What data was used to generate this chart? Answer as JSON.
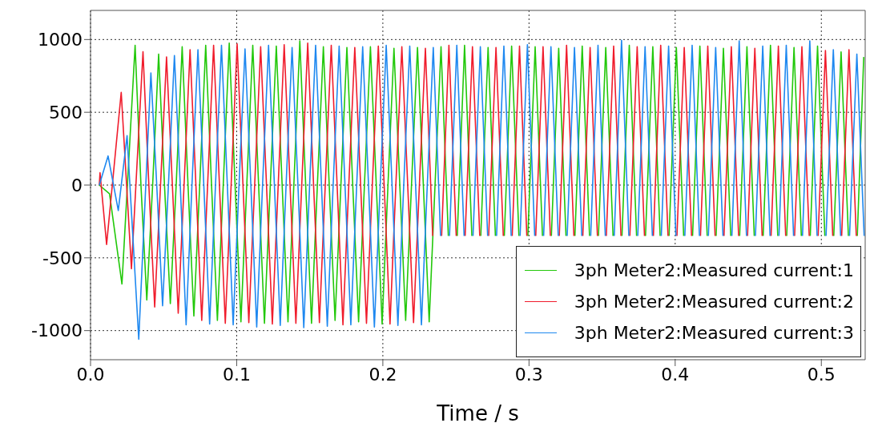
{
  "chart_data": {
    "type": "line",
    "xlabel": "Time / s",
    "xlim": [
      0,
      0.53
    ],
    "xticks": [
      {
        "value": 0,
        "label": "0.0"
      },
      0.1,
      0.2,
      0.3,
      0.4,
      0.5
    ],
    "ylim": [
      -1200,
      1200
    ],
    "yticks": [
      -1000,
      -500,
      0,
      500,
      1000
    ],
    "grid": true,
    "legend": "bottom right",
    "series": [
      {
        "name": "3ph Meter2:Measured current:1",
        "color": "#22c80a",
        "x": [
          0.006,
          0.013,
          0.0215,
          0.0305,
          0.0345,
          0.0385,
          0.0425,
          0.0466,
          0.0506,
          0.0546,
          0.0586,
          0.0627,
          0.0667,
          0.0707,
          0.0747,
          0.0788,
          0.0828,
          0.0868,
          0.0908,
          0.0949,
          0.0989,
          0.1029,
          0.1069,
          0.111,
          0.115,
          0.119,
          0.123,
          0.1271,
          0.1311,
          0.1351,
          0.1391,
          0.1432,
          0.1472,
          0.1512,
          0.1552,
          0.1593,
          0.1633,
          0.1673,
          0.1713,
          0.1754,
          0.1794,
          0.1834,
          0.1874,
          0.1915,
          0.1955,
          0.1995,
          0.2035,
          0.2076,
          0.2116,
          0.2156,
          0.2196,
          0.2237,
          0.2277,
          0.2317,
          0.2357,
          0.2398,
          0.2448,
          0.2478,
          0.2509,
          0.2559,
          0.2609,
          0.2639,
          0.267,
          0.272,
          0.277,
          0.28,
          0.2831,
          0.2881,
          0.2931,
          0.2961,
          0.2992,
          0.3042,
          0.3092,
          0.3122,
          0.3153,
          0.3203,
          0.3253,
          0.3283,
          0.3314,
          0.3364,
          0.3414,
          0.3444,
          0.3475,
          0.3525,
          0.3575,
          0.3605,
          0.3636,
          0.3686,
          0.3736,
          0.3766,
          0.3797,
          0.3847,
          0.3897,
          0.3927,
          0.3958,
          0.4008,
          0.4058,
          0.4088,
          0.4119,
          0.4169,
          0.4219,
          0.4249,
          0.428,
          0.433,
          0.438,
          0.441,
          0.4441,
          0.4491,
          0.4541,
          0.4571,
          0.4602,
          0.4652,
          0.4702,
          0.4732,
          0.4763,
          0.4813,
          0.4863,
          0.4893,
          0.4924,
          0.4974,
          0.5024,
          0.5054,
          0.5085,
          0.5135,
          0.5185,
          0.5215,
          0.5246,
          0.529
        ],
        "values": [
          0,
          -60,
          -680,
          960,
          0,
          -790,
          0,
          900,
          0,
          -815,
          0,
          950,
          0,
          -900,
          0,
          960,
          0,
          -930,
          0,
          975,
          0,
          -940,
          0,
          960,
          0,
          -950,
          0,
          955,
          0,
          -940,
          0,
          990,
          0,
          -950,
          0,
          950,
          0,
          -930,
          0,
          945,
          0,
          -940,
          0,
          950,
          0,
          -955,
          0,
          940,
          0,
          -930,
          0,
          945,
          0,
          -940,
          0,
          950,
          -350,
          null,
          -350,
          960,
          -350,
          null,
          -350,
          945,
          -350,
          null,
          -350,
          955,
          -350,
          null,
          -350,
          950,
          -350,
          null,
          -350,
          940,
          -350,
          null,
          -350,
          955,
          -350,
          null,
          -350,
          945,
          -350,
          null,
          -350,
          960,
          -350,
          null,
          -350,
          950,
          -350,
          null,
          -350,
          945,
          -350,
          null,
          -350,
          955,
          -350,
          null,
          -350,
          940,
          -350,
          null,
          -350,
          950,
          -350,
          null,
          -350,
          960,
          -350,
          null,
          -350,
          945,
          -350,
          null,
          -350,
          955,
          -350,
          null,
          -350,
          915,
          -350,
          null,
          -350,
          880
        ]
      },
      {
        "name": "3ph Meter2:Measured current:2",
        "color": "#f01c2c",
        "x": [
          0.006,
          0.0065,
          0.011,
          0.021,
          0.028,
          0.0359,
          0.0399,
          0.0439,
          0.0479,
          0.052,
          0.056,
          0.06,
          0.064,
          0.0681,
          0.0721,
          0.0761,
          0.0801,
          0.0842,
          0.0882,
          0.0922,
          0.0962,
          0.1003,
          0.1043,
          0.1083,
          0.1123,
          0.1164,
          0.1204,
          0.1244,
          0.1284,
          0.1325,
          0.1365,
          0.1405,
          0.1445,
          0.1486,
          0.1526,
          0.1566,
          0.1606,
          0.1647,
          0.1687,
          0.1727,
          0.1767,
          0.1808,
          0.1848,
          0.1888,
          0.1928,
          0.1969,
          0.2009,
          0.2049,
          0.2089,
          0.213,
          0.217,
          0.221,
          0.225,
          0.2291,
          0.2341,
          0.2371,
          0.2402,
          0.2452,
          0.2502,
          0.2532,
          0.2563,
          0.2613,
          0.2663,
          0.2693,
          0.2724,
          0.2774,
          0.2824,
          0.2854,
          0.2885,
          0.2935,
          0.2985,
          0.3015,
          0.3046,
          0.3096,
          0.3146,
          0.3176,
          0.3207,
          0.3257,
          0.3307,
          0.3337,
          0.3368,
          0.3418,
          0.3468,
          0.3498,
          0.3529,
          0.3579,
          0.3629,
          0.3659,
          0.369,
          0.374,
          0.379,
          0.382,
          0.3851,
          0.3901,
          0.3951,
          0.3981,
          0.4012,
          0.4062,
          0.4112,
          0.4142,
          0.4173,
          0.4223,
          0.4273,
          0.4303,
          0.4334,
          0.4384,
          0.4434,
          0.4464,
          0.4495,
          0.4545,
          0.4595,
          0.4625,
          0.4656,
          0.4706,
          0.4756,
          0.4786,
          0.4817,
          0.4867,
          0.4917,
          0.4947,
          0.4978,
          0.5028,
          0.5078,
          0.5108,
          0.5139,
          0.5189,
          0.5239
        ],
        "values": [
          0,
          85,
          -408,
          637,
          -575,
          916,
          0,
          -838,
          0,
          880,
          0,
          -880,
          0,
          930,
          0,
          -930,
          0,
          960,
          0,
          -950,
          0,
          970,
          0,
          -945,
          0,
          950,
          0,
          -955,
          0,
          965,
          0,
          -950,
          0,
          975,
          0,
          -945,
          0,
          960,
          0,
          -960,
          0,
          945,
          0,
          -950,
          0,
          955,
          0,
          -955,
          0,
          950,
          0,
          -945,
          0,
          940,
          -350,
          null,
          -350,
          960,
          -350,
          null,
          -350,
          950,
          -350,
          null,
          -350,
          945,
          -350,
          null,
          -350,
          955,
          -350,
          null,
          -350,
          950,
          -350,
          null,
          -350,
          960,
          -350,
          null,
          -350,
          945,
          -350,
          null,
          -350,
          955,
          -350,
          null,
          -350,
          950,
          -350,
          null,
          -350,
          960,
          -350,
          null,
          -350,
          945,
          -350,
          null,
          -350,
          955,
          -350,
          null,
          -350,
          950,
          -350,
          null,
          -350,
          940,
          -350,
          null,
          -350,
          955,
          -350,
          null,
          -350,
          950,
          -350,
          null,
          -350,
          925,
          -350,
          null,
          -350,
          930,
          -350
        ]
      },
      {
        "name": "3ph Meter2:Measured current:3",
        "color": "#1e88f0",
        "x": [
          0.006,
          0.012,
          0.019,
          0.025,
          0.033,
          0.0413,
          0.0453,
          0.0493,
          0.0533,
          0.0574,
          0.0614,
          0.0654,
          0.0694,
          0.0735,
          0.0775,
          0.0815,
          0.0855,
          0.0896,
          0.0936,
          0.0976,
          0.1016,
          0.1057,
          0.1097,
          0.1137,
          0.1177,
          0.1218,
          0.1258,
          0.1298,
          0.1338,
          0.1379,
          0.1419,
          0.1459,
          0.1499,
          0.154,
          0.158,
          0.162,
          0.166,
          0.1701,
          0.1741,
          0.1781,
          0.1821,
          0.1862,
          0.1902,
          0.1942,
          0.1982,
          0.2023,
          0.2063,
          0.2103,
          0.2143,
          0.2184,
          0.2224,
          0.2264,
          0.2304,
          0.2345,
          0.2395,
          0.2425,
          0.2456,
          0.2506,
          0.2556,
          0.2586,
          0.2617,
          0.2667,
          0.2717,
          0.2747,
          0.2778,
          0.2828,
          0.2878,
          0.2908,
          0.2939,
          0.2989,
          0.3039,
          0.3069,
          0.31,
          0.315,
          0.32,
          0.323,
          0.3261,
          0.3311,
          0.3361,
          0.3391,
          0.3422,
          0.3472,
          0.3522,
          0.3552,
          0.3583,
          0.3633,
          0.3683,
          0.3713,
          0.3744,
          0.3794,
          0.3844,
          0.3874,
          0.3905,
          0.3955,
          0.4005,
          0.4035,
          0.4066,
          0.4116,
          0.4166,
          0.4196,
          0.4227,
          0.4277,
          0.4327,
          0.4357,
          0.4388,
          0.4438,
          0.4488,
          0.4518,
          0.4549,
          0.4599,
          0.4649,
          0.4679,
          0.471,
          0.476,
          0.481,
          0.484,
          0.4871,
          0.4921,
          0.4971,
          0.5001,
          0.5032,
          0.5082,
          0.5132,
          0.5162,
          0.5193,
          0.5243,
          0.5293
        ],
        "values": [
          0,
          200,
          -175,
          340,
          -1060,
          770,
          0,
          -830,
          0,
          890,
          0,
          -960,
          0,
          930,
          0,
          -955,
          0,
          960,
          0,
          -960,
          0,
          935,
          0,
          -975,
          0,
          960,
          0,
          -965,
          0,
          945,
          0,
          -980,
          0,
          960,
          0,
          -970,
          0,
          955,
          0,
          -960,
          0,
          950,
          0,
          -975,
          0,
          960,
          0,
          -965,
          0,
          955,
          0,
          -960,
          0,
          945,
          -350,
          null,
          -350,
          960,
          -350,
          null,
          -350,
          950,
          -350,
          null,
          -350,
          955,
          -350,
          null,
          -350,
          965,
          -350,
          null,
          -350,
          950,
          -350,
          null,
          -350,
          945,
          -350,
          null,
          -350,
          960,
          -350,
          null,
          -350,
          995,
          -350,
          null,
          -350,
          950,
          -350,
          null,
          -350,
          955,
          -350,
          null,
          -350,
          960,
          -350,
          null,
          -350,
          945,
          -350,
          null,
          -350,
          990,
          -350,
          null,
          -350,
          955,
          -350,
          null,
          -350,
          960,
          -350,
          null,
          -350,
          990,
          -350,
          null,
          -350,
          930,
          -350,
          null,
          -350,
          900,
          -350
        ]
      }
    ]
  }
}
